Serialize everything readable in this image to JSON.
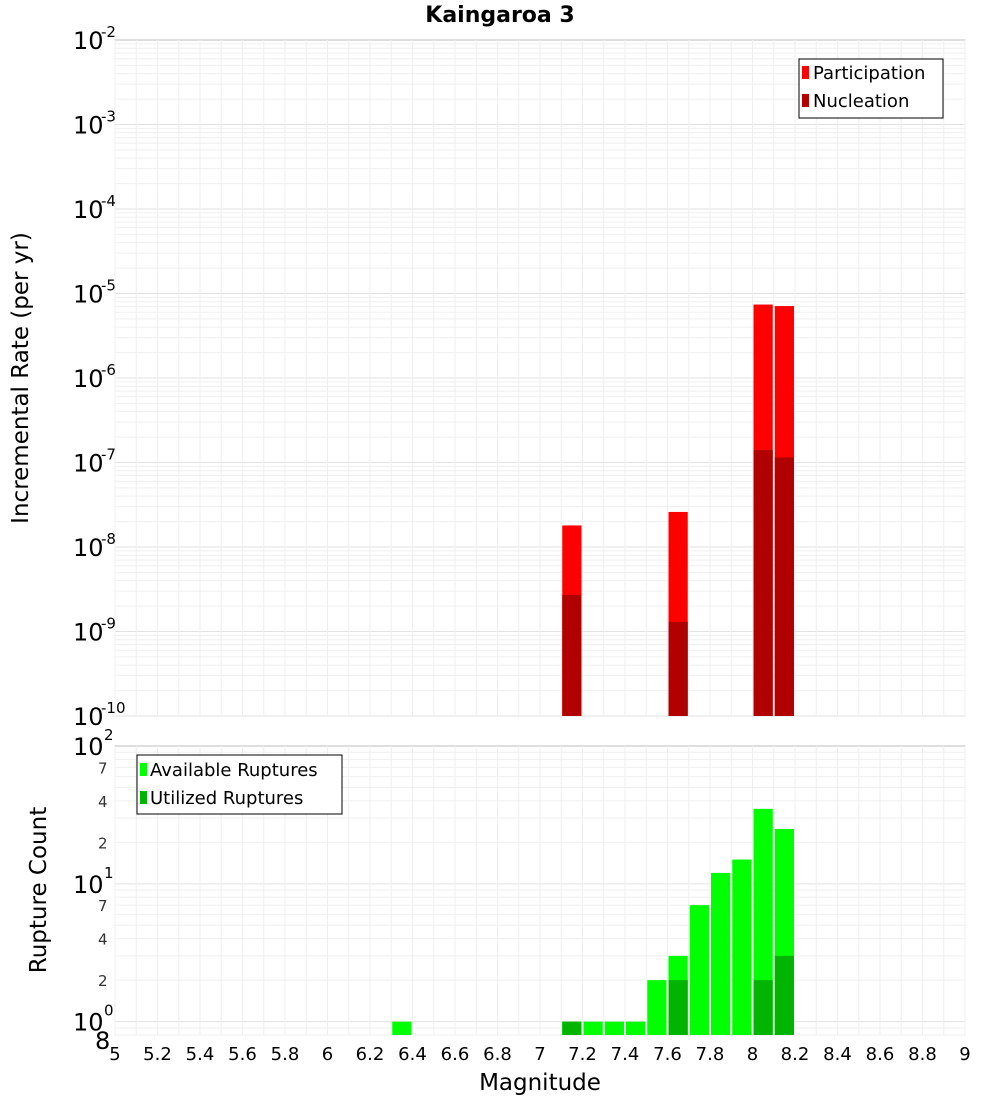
{
  "title": "Kaingaroa 3",
  "x_axis": {
    "label": "Magnitude",
    "ticks": [
      "5",
      "5.2",
      "5.4",
      "5.6",
      "5.8",
      "6",
      "6.2",
      "6.4",
      "6.6",
      "6.8",
      "7",
      "7.2",
      "7.4",
      "7.6",
      "7.8",
      "8",
      "8.2",
      "8.4",
      "8.6",
      "8.8",
      "9"
    ]
  },
  "chart_data": [
    {
      "type": "bar",
      "title": "Kaingaroa 3",
      "xlabel": "",
      "ylabel": "Incremental Rate (per yr)",
      "y_scale": "log",
      "xlim": [
        5,
        9
      ],
      "ylim": [
        1e-10,
        0.01
      ],
      "y_ticks": [
        {
          "base": "10",
          "exp": "-10"
        },
        {
          "base": "10",
          "exp": "-9"
        },
        {
          "base": "10",
          "exp": "-8"
        },
        {
          "base": "10",
          "exp": "-7"
        },
        {
          "base": "10",
          "exp": "-6"
        },
        {
          "base": "10",
          "exp": "-5"
        },
        {
          "base": "10",
          "exp": "-4"
        },
        {
          "base": "10",
          "exp": "-3"
        },
        {
          "base": "10",
          "exp": "-2"
        }
      ],
      "legend_position": "top-right",
      "series": [
        {
          "name": "Participation",
          "color": "#ff0000",
          "x": [
            7.15,
            7.65,
            8.05,
            8.15
          ],
          "values": [
            1.8e-08,
            2.6e-08,
            7.4e-06,
            7.1e-06
          ]
        },
        {
          "name": "Nucleation",
          "color": "#b00000",
          "x": [
            7.15,
            7.65,
            8.05,
            8.15
          ],
          "values": [
            2.7e-09,
            1.3e-09,
            1.4e-07,
            1.15e-07
          ]
        }
      ]
    },
    {
      "type": "bar",
      "title": "",
      "xlabel": "Magnitude",
      "ylabel": "Rupture Count",
      "y_scale": "log",
      "xlim": [
        5,
        9
      ],
      "ylim": [
        0.8,
        100
      ],
      "y_ticks": [
        {
          "base": "10",
          "exp": "0"
        },
        {
          "base": "10",
          "exp": "1"
        },
        {
          "base": "10",
          "exp": "2"
        }
      ],
      "y_minor_ticks": [
        {
          "label": "8",
          "value": 0.8
        },
        {
          "label": "2",
          "value": 2
        },
        {
          "label": "4",
          "value": 4
        },
        {
          "label": "7",
          "value": 7
        },
        {
          "label": "2",
          "value": 20
        },
        {
          "label": "4",
          "value": 40
        },
        {
          "label": "7",
          "value": 70
        }
      ],
      "legend_position": "top-left",
      "series": [
        {
          "name": "Available Ruptures",
          "color": "#00ff00",
          "x": [
            6.35,
            7.15,
            7.25,
            7.35,
            7.45,
            7.55,
            7.65,
            7.75,
            7.85,
            7.95,
            8.05,
            8.15
          ],
          "values": [
            1,
            1,
            1,
            1,
            1,
            2,
            3,
            7,
            12,
            15,
            35,
            25
          ]
        },
        {
          "name": "Utilized Ruptures",
          "color": "#00b400",
          "x": [
            7.15,
            7.65,
            8.05,
            8.15
          ],
          "values": [
            1,
            2,
            2,
            3
          ]
        }
      ]
    }
  ]
}
